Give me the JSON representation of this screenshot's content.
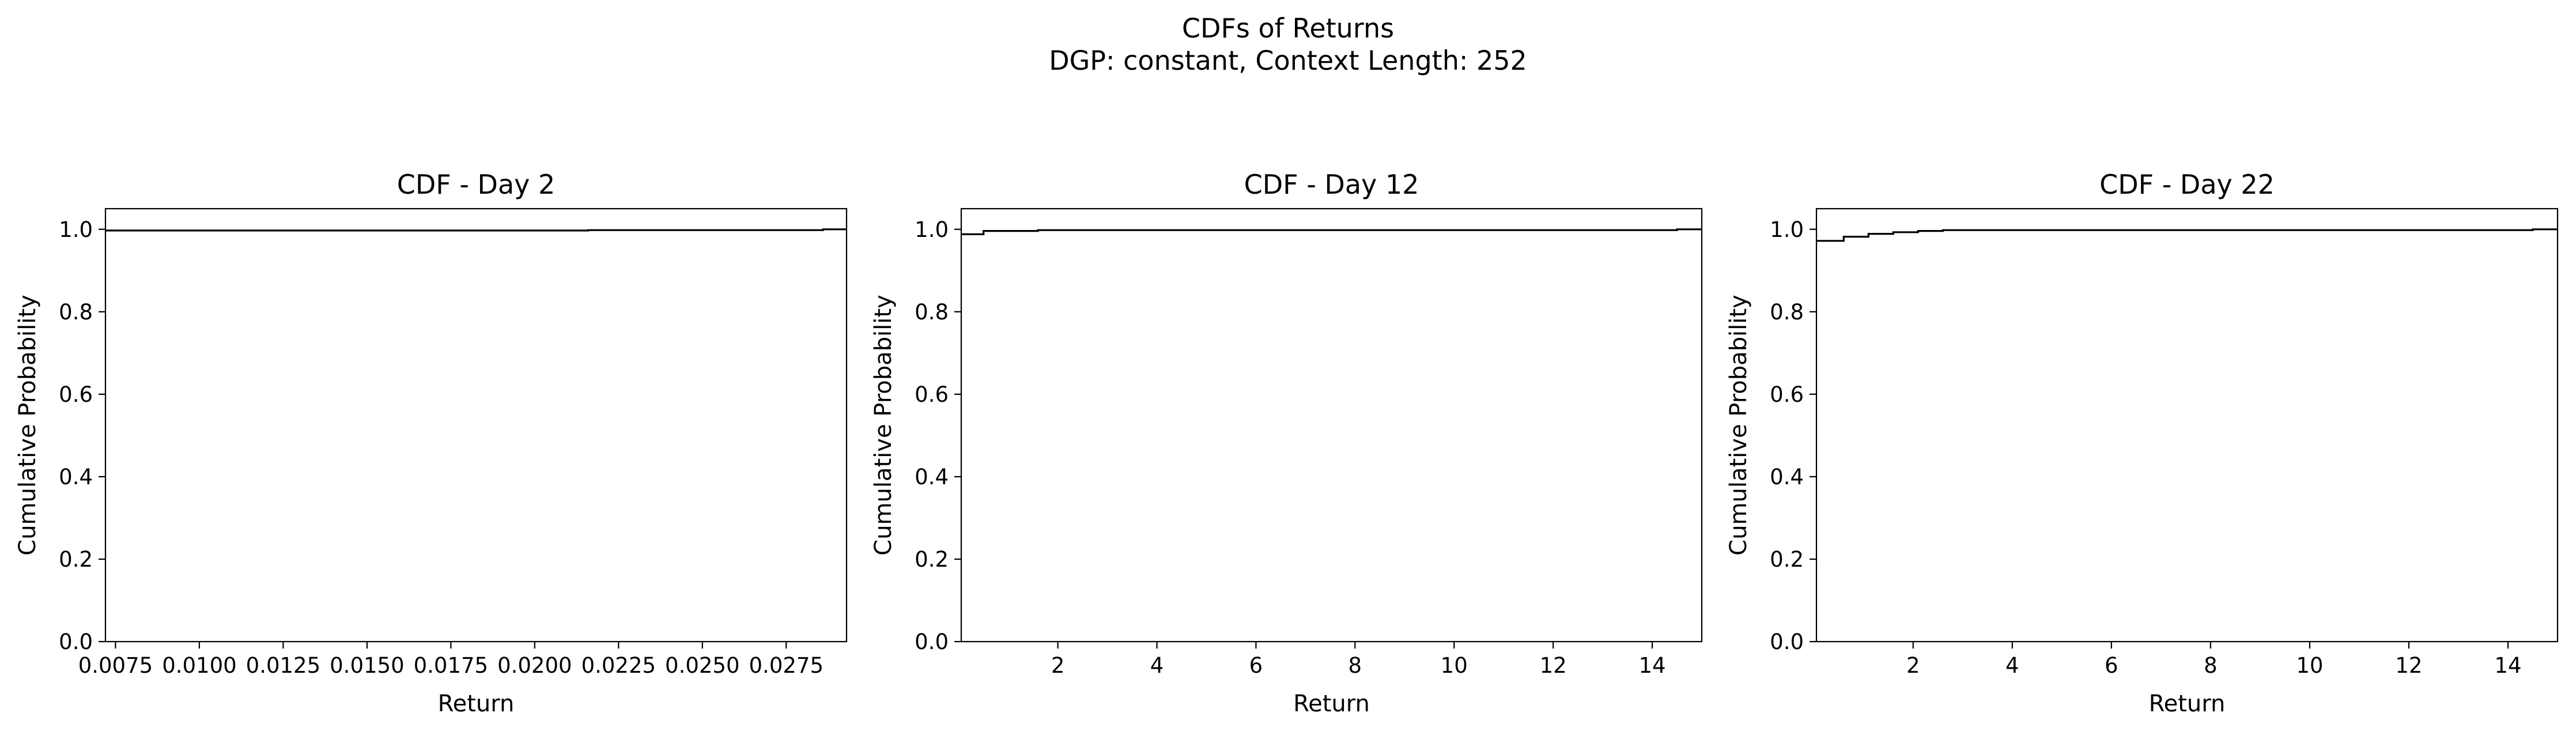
{
  "figure": {
    "title": "CDFs of Returns",
    "subtitle": "DGP: constant, Context Length: 252"
  },
  "chart_data": [
    {
      "type": "line",
      "step": true,
      "title": "CDF - Day 2",
      "xlabel": "Return",
      "ylabel": "Cumulative Probability",
      "xlim": [
        0.0072,
        0.0293
      ],
      "ylim": [
        0.0,
        1.05
      ],
      "xticks": [
        0.0075,
        0.01,
        0.0125,
        0.015,
        0.0175,
        0.02,
        0.0225,
        0.025,
        0.0275
      ],
      "xtick_labels": [
        "0.0075",
        "0.0100",
        "0.0125",
        "0.0150",
        "0.0175",
        "0.0200",
        "0.0225",
        "0.0250",
        "0.0275"
      ],
      "yticks": [
        0.0,
        0.2,
        0.4,
        0.6,
        0.8,
        1.0
      ],
      "ytick_labels": [
        "0.0",
        "0.2",
        "0.4",
        "0.6",
        "0.8",
        "1.0"
      ],
      "grid": false,
      "color": "#000000",
      "x": [
        0.0072,
        0.0216,
        0.0286,
        0.0293
      ],
      "y": [
        0.997,
        0.998,
        1.0,
        1.0
      ]
    },
    {
      "type": "line",
      "step": true,
      "title": "CDF - Day 12",
      "xlabel": "Return",
      "ylabel": "Cumulative Probability",
      "xlim": [
        0.05,
        15.0
      ],
      "ylim": [
        0.0,
        1.05
      ],
      "xticks": [
        2,
        4,
        6,
        8,
        10,
        12,
        14
      ],
      "xtick_labels": [
        "2",
        "4",
        "6",
        "8",
        "10",
        "12",
        "14"
      ],
      "yticks": [
        0.0,
        0.2,
        0.4,
        0.6,
        0.8,
        1.0
      ],
      "ytick_labels": [
        "0.0",
        "0.2",
        "0.4",
        "0.6",
        "0.8",
        "1.0"
      ],
      "grid": false,
      "color": "#000000",
      "x": [
        0.05,
        0.5,
        1.6,
        14.5,
        15.0
      ],
      "y": [
        0.988,
        0.996,
        0.998,
        1.0,
        1.0
      ]
    },
    {
      "type": "line",
      "step": true,
      "title": "CDF - Day 22",
      "xlabel": "Return",
      "ylabel": "Cumulative Probability",
      "xlim": [
        0.05,
        15.0
      ],
      "ylim": [
        0.0,
        1.05
      ],
      "xticks": [
        2,
        4,
        6,
        8,
        10,
        12,
        14
      ],
      "xtick_labels": [
        "2",
        "4",
        "6",
        "8",
        "10",
        "12",
        "14"
      ],
      "yticks": [
        0.0,
        0.2,
        0.4,
        0.6,
        0.8,
        1.0
      ],
      "ytick_labels": [
        "0.0",
        "0.2",
        "0.4",
        "0.6",
        "0.8",
        "1.0"
      ],
      "grid": false,
      "color": "#000000",
      "x": [
        0.05,
        0.6,
        1.1,
        1.6,
        2.1,
        2.6,
        14.5,
        15.0
      ],
      "y": [
        0.972,
        0.982,
        0.989,
        0.993,
        0.996,
        0.998,
        1.0,
        1.0
      ]
    }
  ]
}
